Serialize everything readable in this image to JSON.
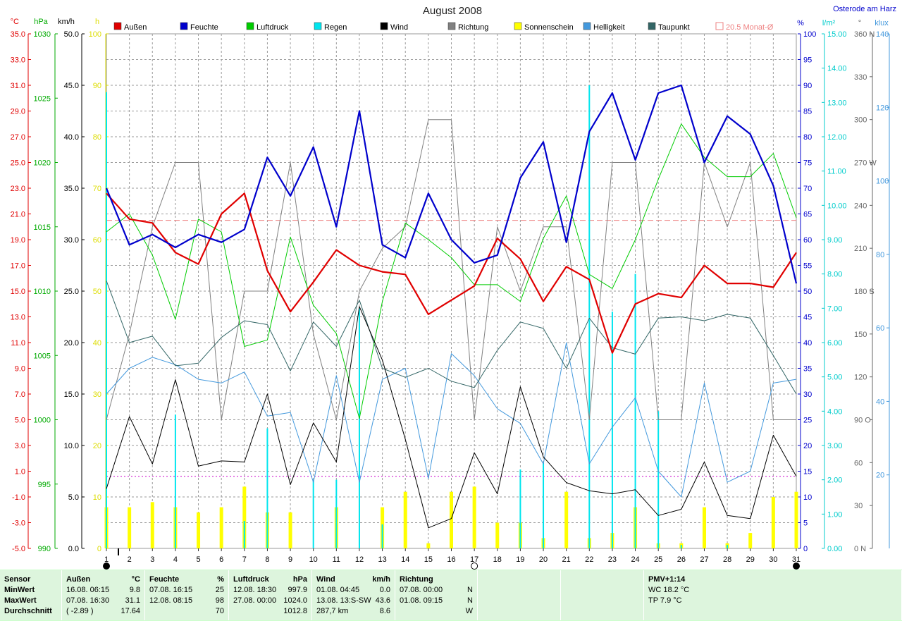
{
  "title": "August 2008",
  "location": "Osterode am Harz",
  "axes_units": {
    "temp": "°C",
    "pressure": "hPa",
    "wind": "km/h",
    "sun": "h",
    "humidity": "%",
    "rain": "l/m²",
    "direction": "°",
    "light": "klux"
  },
  "legend": [
    {
      "label": "Außen",
      "color": "#e00000"
    },
    {
      "label": "Feuchte",
      "color": "#0000cc"
    },
    {
      "label": "Luftdruck",
      "color": "#00cc00"
    },
    {
      "label": "Regen",
      "color": "#00e5ee"
    },
    {
      "label": "Wind",
      "color": "#000000"
    },
    {
      "label": "Richtung",
      "color": "#808080"
    },
    {
      "label": "Sonnenschein",
      "color": "#ffff00"
    },
    {
      "label": "Helligkeit",
      "color": "#4499dd"
    },
    {
      "label": "Taupunkt",
      "color": "#336666"
    },
    {
      "label": "20.5 Monat-Ø",
      "color": "#ee8080"
    }
  ],
  "chart_data": {
    "type": "line",
    "title": "August 2008",
    "x": [
      1,
      2,
      3,
      4,
      5,
      6,
      7,
      8,
      9,
      10,
      11,
      12,
      13,
      14,
      15,
      16,
      17,
      18,
      19,
      20,
      21,
      22,
      23,
      24,
      25,
      26,
      27,
      28,
      29,
      30,
      31
    ],
    "axes": {
      "temp": {
        "range": [
          -5,
          35
        ],
        "ticks": [
          "35.0",
          "33.0",
          "31.0",
          "29.0",
          "27.0",
          "25.0",
          "23.0",
          "21.0",
          "19.0",
          "17.0",
          "15.0",
          "13.0",
          "11.0",
          "9.0",
          "7.0",
          "5.0",
          "3.0",
          "1.0",
          "-1.0",
          "-3.0",
          "-5.0"
        ]
      },
      "pressure": {
        "range": [
          990,
          1030
        ],
        "ticks": [
          "1030",
          "1025",
          "1020",
          "1015",
          "1010",
          "1005",
          "1000",
          "995",
          "990"
        ]
      },
      "wind": {
        "range": [
          0,
          50
        ],
        "ticks": [
          "50.0",
          "45.0",
          "40.0",
          "35.0",
          "30.0",
          "25.0",
          "20.0",
          "15.0",
          "10.0",
          "5.0",
          "0.0"
        ]
      },
      "sun": {
        "range": [
          0,
          100
        ],
        "ticks": [
          "100",
          "90",
          "80",
          "70",
          "60",
          "50",
          "40",
          "30",
          "20",
          "10",
          "0"
        ]
      },
      "humidity": {
        "range": [
          0,
          100
        ],
        "ticks": [
          "100",
          "95",
          "90",
          "85",
          "80",
          "75",
          "70",
          "65",
          "60",
          "55",
          "50",
          "45",
          "40",
          "35",
          "30",
          "25",
          "20",
          "15",
          "10",
          "5",
          "0"
        ]
      },
      "rain": {
        "range": [
          0,
          15
        ],
        "ticks": [
          "15.00",
          "14.00",
          "13.00",
          "12.00",
          "11.00",
          "10.00",
          "9.00",
          "8.00",
          "7.00",
          "6.00",
          "5.00",
          "4.00",
          "3.00",
          "2.00",
          "1.00",
          "0.00"
        ]
      },
      "direction": {
        "range": [
          0,
          360
        ],
        "ticks": [
          "360 N",
          "330",
          "300",
          "270 W",
          "240",
          "210",
          "180 S",
          "150",
          "120",
          "90 O",
          "60",
          "30",
          "0 N"
        ]
      },
      "light": {
        "range": [
          0,
          140
        ],
        "ticks": [
          "140",
          "120",
          "100",
          "80",
          "60",
          "40",
          "20"
        ]
      }
    },
    "monthly_avg_temp": 20.5,
    "extra_hline_temp": 0.6,
    "series": [
      {
        "name": "Außen",
        "axis": "temp",
        "color": "#e00000",
        "width": 2.2,
        "values": [
          22.6,
          20.6,
          20.3,
          18.0,
          17.1,
          21.0,
          22.6,
          16.6,
          13.4,
          15.7,
          18.2,
          17.0,
          16.5,
          16.3,
          13.2,
          14.3,
          15.4,
          19.1,
          17.5,
          14.2,
          16.9,
          15.9,
          10.2,
          14.0,
          14.8,
          14.5,
          17.0,
          15.6,
          15.6,
          15.3,
          18.0
        ]
      },
      {
        "name": "Feuchte",
        "axis": "humidity",
        "color": "#0000cc",
        "width": 2.2,
        "values": [
          70,
          59,
          61,
          58.5,
          61,
          59.5,
          62,
          76,
          68.5,
          78,
          62.5,
          85,
          59,
          56.5,
          69,
          60,
          55.5,
          57,
          72,
          79,
          59.5,
          81,
          88.5,
          75.5,
          88.5,
          90,
          75,
          84,
          80.5,
          70.5,
          51.5
        ]
      },
      {
        "name": "Luftdruck",
        "axis": "pressure",
        "color": "#00cc00",
        "width": 1,
        "values": [
          1014.6,
          1016.0,
          1012.8,
          1007.8,
          1015.6,
          1014.6,
          1005.7,
          1006.2,
          1014.2,
          1008.9,
          1006.7,
          1000.1,
          1009.2,
          1015.3,
          1014.0,
          1012.6,
          1010.5,
          1010.5,
          1009.2,
          1014.1,
          1017.4,
          1011.3,
          1010.2,
          1014.0,
          1018.7,
          1023.0,
          1020.4,
          1018.9,
          1018.9,
          1020.7,
          1015.7
        ]
      },
      {
        "name": "Wind",
        "axis": "wind",
        "color": "#000000",
        "width": 1,
        "values": [
          5.8,
          12.8,
          8.2,
          16.4,
          8.0,
          8.5,
          8.4,
          15.0,
          6.2,
          12.2,
          8.4,
          23.5,
          18.3,
          10.6,
          2.0,
          2.9,
          9.3,
          5.3,
          15.7,
          8.9,
          6.4,
          5.6,
          5.3,
          5.7,
          3.2,
          3.8,
          8.4,
          3.2,
          2.9,
          11.0,
          7.0
        ]
      },
      {
        "name": "Richtung",
        "axis": "direction",
        "color": "#808080",
        "width": 1,
        "values": [
          90,
          150,
          225,
          270,
          270,
          90,
          180,
          180,
          270,
          150,
          90,
          180,
          210,
          225,
          300,
          300,
          90,
          225,
          180,
          225,
          225,
          90,
          270,
          270,
          90,
          90,
          270,
          225,
          270,
          90,
          90
        ]
      },
      {
        "name": "Helligkeit",
        "axis": "light",
        "color": "#4499dd",
        "width": 1,
        "values": [
          42,
          49,
          52,
          50,
          46,
          45,
          48,
          36,
          37,
          18,
          47,
          18,
          46,
          49,
          19,
          53,
          47,
          38,
          34,
          23,
          56,
          23,
          33,
          41,
          21,
          14,
          45,
          18,
          21,
          45,
          46
        ]
      },
      {
        "name": "Taupunkt",
        "axis": "temp",
        "color": "#336666",
        "width": 1,
        "values": [
          15.8,
          11.0,
          11.5,
          9.2,
          9.4,
          11.4,
          12.7,
          12.4,
          8.8,
          12.6,
          10.7,
          14.3,
          9.0,
          8.3,
          9.0,
          8.0,
          7.5,
          10.4,
          12.6,
          12.1,
          9.0,
          12.9,
          10.6,
          10.1,
          12.9,
          13.0,
          12.7,
          13.2,
          12.9,
          10.0,
          7.0
        ]
      },
      {
        "name": "Sonnenschein",
        "axis": "sun",
        "color": "#ffff00",
        "kind": "bar",
        "values": [
          8,
          8,
          9,
          8,
          7,
          8,
          12,
          7,
          7,
          0,
          8,
          0,
          8,
          11,
          1,
          11,
          12,
          5,
          5,
          2,
          11,
          2,
          3,
          8,
          1,
          1,
          8,
          1,
          3,
          10,
          11
        ]
      },
      {
        "name": "Regen",
        "axis": "rain",
        "color": "#00e5ee",
        "kind": "bar",
        "values": [
          13.3,
          0,
          0,
          3.9,
          0,
          0,
          0.8,
          3.5,
          0,
          2.0,
          2.0,
          7.0,
          0.7,
          0,
          0,
          0,
          0,
          0,
          2.3,
          2.5,
          0,
          13.5,
          6.9,
          8.0,
          4.0,
          0.1,
          0,
          0.1,
          0,
          0,
          0
        ]
      }
    ],
    "moon_days": [
      {
        "day": 1,
        "phase": "new"
      },
      {
        "day": 17,
        "phase": "full"
      },
      {
        "day": 31,
        "phase": "new"
      }
    ]
  },
  "stats": {
    "sensor": {
      "title": "Sensor",
      "rows": [
        "MinWert",
        "MaxWert",
        "Durchschnitt"
      ]
    },
    "aussen": {
      "title": "Außen",
      "unit": "°C",
      "rows": [
        {
          "left": "16.08.  06:15",
          "right": "9.8"
        },
        {
          "left": "07.08.  16:30",
          "right": "31.1"
        },
        {
          "left": "( -2.89 )",
          "right": "17.64"
        }
      ]
    },
    "feuchte": {
      "title": "Feuchte",
      "unit": "%",
      "rows": [
        {
          "left": "07.08.  16:15",
          "right": "25"
        },
        {
          "left": "12.08.  08:15",
          "right": "98"
        },
        {
          "left": "",
          "right": "70"
        }
      ]
    },
    "luftdruck": {
      "title": "Luftdruck",
      "unit": "hPa",
      "rows": [
        {
          "left": "12.08.  18:30",
          "right": "997.9"
        },
        {
          "left": "27.08.  00:00",
          "right": "1024.0"
        },
        {
          "left": "",
          "right": "1012.8"
        }
      ]
    },
    "wind": {
      "title": "Wind",
      "unit": "km/h",
      "rows": [
        {
          "left": "01.08.  04:45",
          "right": "0.0"
        },
        {
          "left": "13.08.  13:S-SW",
          "right": "43.6"
        },
        {
          "left": "287,7 km",
          "right": "8.6"
        }
      ]
    },
    "richtung": {
      "title": "Richtung",
      "unit": "",
      "rows": [
        {
          "left": "07.08.  00:00",
          "right": "N"
        },
        {
          "left": "01.08.  09:15",
          "right": "N"
        },
        {
          "left": "",
          "right": "W"
        }
      ]
    },
    "pmv": {
      "title": "PMV+1:14",
      "rows": [
        "WC 18.2 °C",
        "TP 7.9 °C"
      ]
    }
  }
}
